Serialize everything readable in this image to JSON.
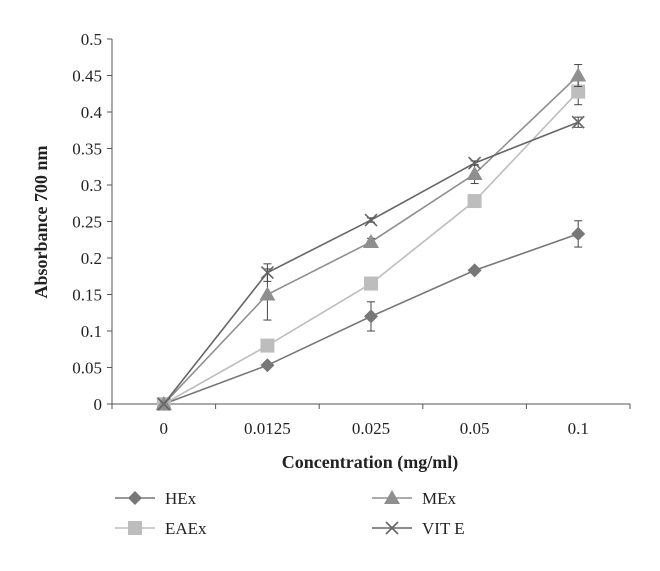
{
  "chart_data": {
    "type": "line",
    "title": "",
    "xlabel": "Concentration (mg/ml)",
    "ylabel": "Absorbance 700 nm",
    "categories": [
      "0",
      "0.0125",
      "0.025",
      "0.05",
      "0.1"
    ],
    "ylim": [
      0,
      0.5
    ],
    "yticks": [
      {
        "value": 0,
        "label": "0"
      },
      {
        "value": 0.05,
        "label": "0.05"
      },
      {
        "value": 0.1,
        "label": "0.1"
      },
      {
        "value": 0.15,
        "label": "0.15"
      },
      {
        "value": 0.2,
        "label": "0.2"
      },
      {
        "value": 0.25,
        "label": "0.25"
      },
      {
        "value": 0.3,
        "label": "0.3"
      },
      {
        "value": 0.35,
        "label": "0.35"
      },
      {
        "value": 0.4,
        "label": "0.4"
      },
      {
        "value": 0.45,
        "label": "0.45"
      },
      {
        "value": 0.5,
        "label": "0.5"
      }
    ],
    "grid": false,
    "legend_position": "bottom",
    "series": [
      {
        "name": "HEx",
        "marker": "diamond",
        "color": "#777777",
        "values": [
          0,
          0.053,
          0.12,
          0.183,
          0.233
        ],
        "errors": [
          0,
          0.003,
          0.02,
          0.003,
          0.018
        ]
      },
      {
        "name": "EAEx",
        "marker": "square",
        "color": "#bdbdbd",
        "values": [
          0,
          0.08,
          0.165,
          0.278,
          0.428
        ],
        "errors": [
          0,
          0.003,
          0.003,
          0.003,
          0.018
        ]
      },
      {
        "name": "MEx",
        "marker": "triangle",
        "color": "#8f8f8f",
        "values": [
          0,
          0.15,
          0.222,
          0.315,
          0.45
        ],
        "errors": [
          0,
          0.035,
          0.005,
          0.013,
          0.015
        ]
      },
      {
        "name": "VIT E",
        "marker": "x",
        "color": "#666666",
        "values": [
          0,
          0.18,
          0.252,
          0.33,
          0.386
        ],
        "errors": [
          0,
          0.012,
          0.003,
          0.003,
          0.007
        ]
      }
    ]
  }
}
